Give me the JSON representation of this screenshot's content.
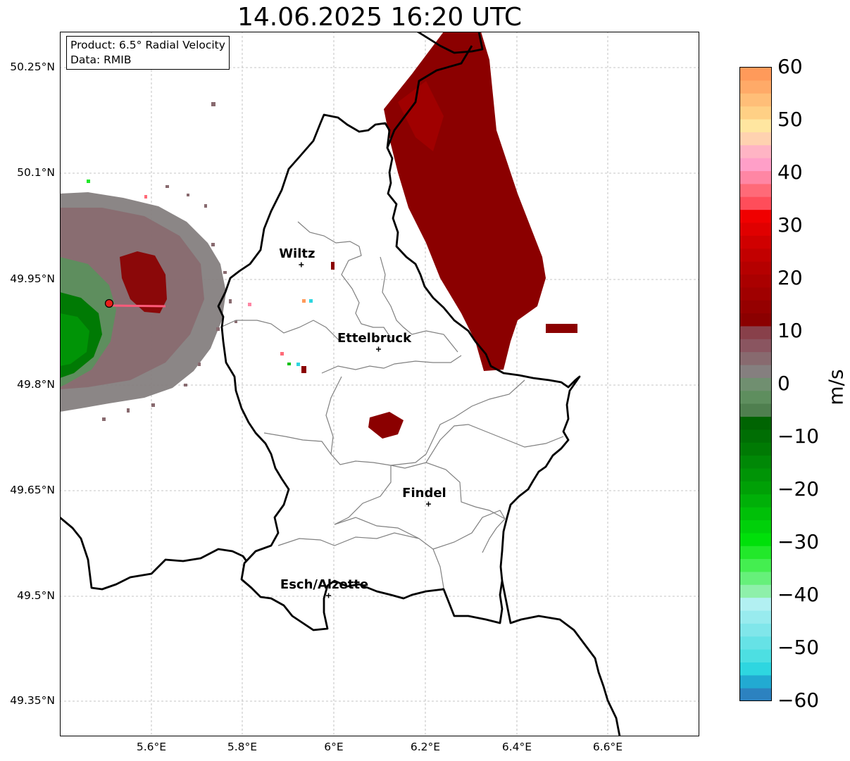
{
  "title": "14.06.2025 16:20 UTC",
  "infobox": {
    "product": "Product: 6.5° Radial Velocity",
    "data": "Data: RMIB"
  },
  "axes": {
    "lat_ticks": [
      "50.25°N",
      "50.1°N",
      "49.95°N",
      "49.8°N",
      "49.65°N",
      "49.5°N",
      "49.35°N"
    ],
    "lon_ticks": [
      "5.6°E",
      "5.8°E",
      "6°E",
      "6.2°E",
      "6.4°E",
      "6.6°E"
    ]
  },
  "cities": [
    {
      "name": "Wiltz",
      "lon": 5.93,
      "lat": 49.97
    },
    {
      "name": "Ettelbruck",
      "lon": 6.1,
      "lat": 49.85
    },
    {
      "name": "Findel",
      "lon": 6.21,
      "lat": 49.63
    },
    {
      "name": "Esch/Alzette",
      "lon": 5.99,
      "lat": 49.5
    }
  ],
  "radar_site": {
    "lon": 5.505,
    "lat": 49.915,
    "color": "#e8201a"
  },
  "colorbar": {
    "label": "m/s",
    "min": -60,
    "max": 60,
    "ticks": [
      "60",
      "50",
      "40",
      "30",
      "20",
      "10",
      "0",
      "−10",
      "−20",
      "−30",
      "−40",
      "−50",
      "−60"
    ],
    "colors": [
      "#2c82c0",
      "#22aad2",
      "#2ed6e0",
      "#4ddfe2",
      "#66e2e6",
      "#80e6ea",
      "#98ebee",
      "#b2f0f2",
      "#8ef0aa",
      "#66f07a",
      "#44ee50",
      "#22e82a",
      "#00e00a",
      "#00d00a",
      "#00c008",
      "#00b008",
      "#00a006",
      "#009406",
      "#008806",
      "#007a04",
      "#006e04",
      "#006402",
      "#4f7f4f",
      "#5e8e5e",
      "#708f70",
      "#857f7f",
      "#886a6f",
      "#8a5560",
      "#88404a",
      "#8b0000",
      "#950000",
      "#a00000",
      "#aa0000",
      "#b50000",
      "#c20000",
      "#d00000",
      "#e00000",
      "#f00000",
      "#ff4d5a",
      "#ff6a78",
      "#ff86a4",
      "#ff9fc8",
      "#ffb4c4",
      "#ffd2b0",
      "#ffe6a0",
      "#ffd085",
      "#ffbe78",
      "#ffaa68",
      "#ff9a5a"
    ]
  }
}
